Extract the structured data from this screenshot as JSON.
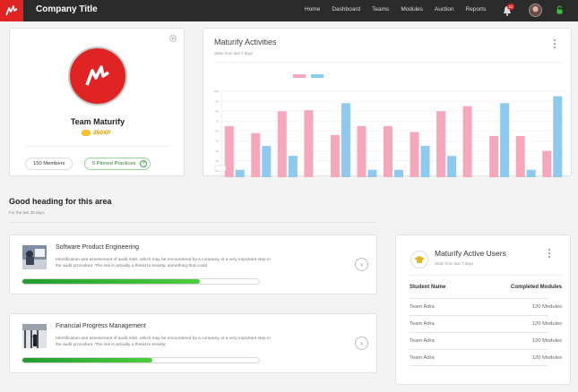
{
  "topbar": {
    "title": "Company Title",
    "nav": [
      "Home",
      "Dashboard",
      "Teams",
      "Modules",
      "Auction",
      "Reports"
    ],
    "notification_count": "22"
  },
  "team": {
    "name": "Team Maturify",
    "xp": "250XP",
    "members": "150 Members",
    "pinned": "5 Pinned Practices",
    "colors": {
      "brand": "#e02424"
    }
  },
  "activities": {
    "title": "Maturify Activities",
    "subtitle": "Stats from last 7 days"
  },
  "chart_data": {
    "type": "bar",
    "categories": [
      "Jan",
      "Feb",
      "Mar",
      "Apr",
      "May",
      "Jun",
      "Jul",
      "Aug",
      "Sep",
      "Oct",
      "Nov",
      "Dec",
      "Jan"
    ],
    "series": [
      {
        "values": [
          65,
          58,
          80,
          81,
          56,
          65,
          65,
          59,
          80,
          85,
          55,
          55,
          40
        ],
        "color": "#f7a7bb"
      },
      {
        "values": [
          21,
          45,
          35,
          10,
          88,
          21,
          21,
          45,
          35,
          10,
          88,
          21,
          95
        ],
        "color": "#8ec9ef"
      }
    ],
    "ylim": [
      0,
      100
    ],
    "legend_position": "top",
    "grid": true
  },
  "section": {
    "title": "Good heading for this area",
    "subtitle": "For the last 30 days"
  },
  "courses": [
    {
      "title": "Software Product Engineering",
      "desc": "Identification and assessment of audit risks, which may be encountered by a company, is a very important step in the audit procedure. The risk is actually a threat to society, something that could",
      "progress": 0.75
    },
    {
      "title": "Financial Progress Management",
      "desc": "Identification and assessment of audit risks, which may be encountered by a company, is a very important step in the audit procedure. The risk is actually a threat to society,",
      "progress": 0.55
    }
  ],
  "active_users": {
    "title": "Maturify Active Users",
    "subtitle": "Stats from last 7 days",
    "col_name": "Student Name",
    "col_modules": "Completed Modules",
    "rows": [
      {
        "name": "Team Adra",
        "modules": "120 Modules"
      },
      {
        "name": "Team Adra",
        "modules": "120 Modules"
      },
      {
        "name": "Team Adra",
        "modules": "120 Modules"
      },
      {
        "name": "Team Adra",
        "modules": "120 Modules"
      }
    ]
  }
}
